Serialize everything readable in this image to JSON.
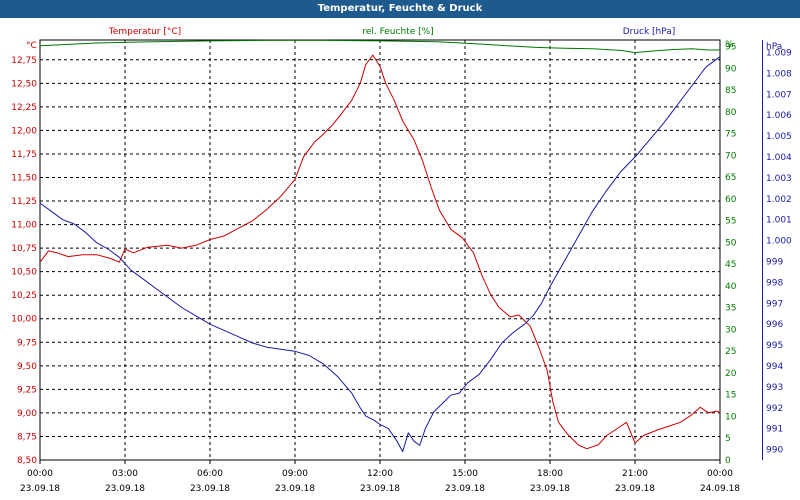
{
  "window": {
    "title": "Temperatur, Feuchte & Druck"
  },
  "colors": {
    "temperature": "#cc0000",
    "humidity": "#007a00",
    "pressure": "#1a1aa6",
    "title_bar": "#1e5a8e"
  },
  "chart_data": {
    "type": "line",
    "title": "Temperatur, Feuchte & Druck",
    "grid": true,
    "x_labels": [
      {
        "time": "00:00",
        "date": "23.09.18"
      },
      {
        "time": "03:00",
        "date": "23.09.18"
      },
      {
        "time": "06:00",
        "date": "23.09.18"
      },
      {
        "time": "09:00",
        "date": "23.09.18"
      },
      {
        "time": "12:00",
        "date": "23.09.18"
      },
      {
        "time": "15:00",
        "date": "23.09.18"
      },
      {
        "time": "18:00",
        "date": "23.09.18"
      },
      {
        "time": "21:00",
        "date": "23.09.18"
      },
      {
        "time": "00:00",
        "date": "24.09.18"
      }
    ],
    "xlim": [
      0,
      24
    ],
    "axes": {
      "temperature": {
        "label": "Temperatur [°C]",
        "unit": "°C",
        "range": [
          8.5,
          12.96
        ],
        "ticks": [
          "8,50",
          "8,75",
          "9,00",
          "9,25",
          "9,50",
          "9,75",
          "10,00",
          "10,25",
          "10,50",
          "10,75",
          "11,00",
          "11,25",
          "11,50",
          "11,75",
          "12,00",
          "12,25",
          "12,50",
          "12,75"
        ]
      },
      "humidity": {
        "label": "rel. Feuchte [%]",
        "unit": "%",
        "range": [
          0,
          96.5
        ],
        "ticks": [
          "0",
          "5",
          "10",
          "15",
          "20",
          "25",
          "30",
          "35",
          "40",
          "45",
          "50",
          "55",
          "60",
          "65",
          "70",
          "75",
          "80",
          "85",
          "90",
          "95",
          "%"
        ]
      },
      "pressure": {
        "label": "Druck [hPa]",
        "unit": "hPa",
        "range": [
          989.5,
          1009.6
        ],
        "ticks": [
          "990",
          "991",
          "992",
          "993",
          "994",
          "995",
          "996",
          "997",
          "998",
          "999",
          "1.000",
          "1.001",
          "1.002",
          "1.003",
          "1.004",
          "1.005",
          "1.006",
          "1.007",
          "1.008",
          "1.009",
          "hPa"
        ]
      }
    },
    "series": [
      {
        "name": "Temperatur [°C]",
        "axis": "temperature",
        "points": [
          [
            0,
            10.6
          ],
          [
            0.3,
            10.72
          ],
          [
            0.6,
            10.7
          ],
          [
            1,
            10.66
          ],
          [
            1.5,
            10.68
          ],
          [
            2,
            10.68
          ],
          [
            2.5,
            10.64
          ],
          [
            2.8,
            10.6
          ],
          [
            3,
            10.74
          ],
          [
            3.3,
            10.7
          ],
          [
            3.8,
            10.76
          ],
          [
            4.5,
            10.78
          ],
          [
            5,
            10.75
          ],
          [
            5.5,
            10.78
          ],
          [
            6,
            10.84
          ],
          [
            6.5,
            10.88
          ],
          [
            7,
            10.96
          ],
          [
            7.5,
            11.04
          ],
          [
            8,
            11.16
          ],
          [
            8.5,
            11.3
          ],
          [
            9,
            11.48
          ],
          [
            9.3,
            11.72
          ],
          [
            9.7,
            11.88
          ],
          [
            10,
            11.96
          ],
          [
            10.3,
            12.05
          ],
          [
            10.6,
            12.16
          ],
          [
            11,
            12.32
          ],
          [
            11.3,
            12.5
          ],
          [
            11.5,
            12.7
          ],
          [
            11.75,
            12.8
          ],
          [
            12,
            12.68
          ],
          [
            12.2,
            12.5
          ],
          [
            12.5,
            12.32
          ],
          [
            12.8,
            12.1
          ],
          [
            13.2,
            11.9
          ],
          [
            13.5,
            11.68
          ],
          [
            13.8,
            11.4
          ],
          [
            14.1,
            11.15
          ],
          [
            14.5,
            10.95
          ],
          [
            14.9,
            10.86
          ],
          [
            15.3,
            10.7
          ],
          [
            15.6,
            10.46
          ],
          [
            15.9,
            10.26
          ],
          [
            16.2,
            10.12
          ],
          [
            16.6,
            10.02
          ],
          [
            16.9,
            10.04
          ],
          [
            17.3,
            9.92
          ],
          [
            17.6,
            9.7
          ],
          [
            17.9,
            9.45
          ],
          [
            18.1,
            9.12
          ],
          [
            18.3,
            8.9
          ],
          [
            18.6,
            8.78
          ],
          [
            19,
            8.66
          ],
          [
            19.3,
            8.62
          ],
          [
            19.7,
            8.66
          ],
          [
            20,
            8.76
          ],
          [
            20.4,
            8.84
          ],
          [
            20.7,
            8.9
          ],
          [
            21,
            8.68
          ],
          [
            21.3,
            8.76
          ],
          [
            21.8,
            8.82
          ],
          [
            22.2,
            8.86
          ],
          [
            22.6,
            8.9
          ],
          [
            23,
            8.98
          ],
          [
            23.3,
            9.06
          ],
          [
            23.6,
            9.0
          ],
          [
            23.9,
            9.02
          ],
          [
            24,
            9.0
          ]
        ]
      },
      {
        "name": "rel. Feuchte [%]",
        "axis": "humidity",
        "points": [
          [
            0,
            95.2
          ],
          [
            2,
            95.8
          ],
          [
            4,
            96.1
          ],
          [
            6,
            96.3
          ],
          [
            8,
            96.4
          ],
          [
            10,
            96.4
          ],
          [
            12,
            96.3
          ],
          [
            14,
            96.1
          ],
          [
            15.2,
            95.7
          ],
          [
            16.5,
            95.2
          ],
          [
            17.5,
            94.8
          ],
          [
            18.5,
            94.6
          ],
          [
            19.5,
            94.5
          ],
          [
            20.5,
            94.1
          ],
          [
            21,
            93.6
          ],
          [
            21.5,
            93.9
          ],
          [
            22.3,
            94.3
          ],
          [
            23,
            94.5
          ],
          [
            23.6,
            94.2
          ],
          [
            24,
            94.2
          ]
        ]
      },
      {
        "name": "Druck [hPa]",
        "axis": "pressure",
        "points": [
          [
            0,
            1001.8
          ],
          [
            0.4,
            1001.4
          ],
          [
            0.8,
            1001.0
          ],
          [
            1.2,
            1000.8
          ],
          [
            1.6,
            1000.4
          ],
          [
            2,
            999.9
          ],
          [
            2.4,
            999.6
          ],
          [
            2.8,
            999.2
          ],
          [
            3.2,
            998.6
          ],
          [
            3.6,
            998.2
          ],
          [
            4,
            997.8
          ],
          [
            4.5,
            997.3
          ],
          [
            5,
            996.8
          ],
          [
            5.5,
            996.4
          ],
          [
            6,
            996.0
          ],
          [
            6.5,
            995.7
          ],
          [
            7,
            995.4
          ],
          [
            7.5,
            995.1
          ],
          [
            8,
            994.9
          ],
          [
            8.5,
            994.8
          ],
          [
            9,
            994.7
          ],
          [
            9.5,
            994.5
          ],
          [
            10,
            994.1
          ],
          [
            10.5,
            993.5
          ],
          [
            11,
            992.7
          ],
          [
            11.3,
            992.0
          ],
          [
            11.5,
            991.6
          ],
          [
            11.8,
            991.4
          ],
          [
            12,
            991.2
          ],
          [
            12.3,
            991.0
          ],
          [
            12.6,
            990.4
          ],
          [
            12.8,
            989.9
          ],
          [
            13.0,
            990.8
          ],
          [
            13.2,
            990.4
          ],
          [
            13.4,
            990.2
          ],
          [
            13.6,
            991.0
          ],
          [
            13.9,
            991.8
          ],
          [
            14.2,
            992.2
          ],
          [
            14.5,
            992.6
          ],
          [
            14.8,
            992.7
          ],
          [
            15.1,
            993.2
          ],
          [
            15.5,
            993.6
          ],
          [
            15.9,
            994.3
          ],
          [
            16.3,
            995.1
          ],
          [
            16.7,
            995.6
          ],
          [
            17.1,
            996.0
          ],
          [
            17.4,
            996.4
          ],
          [
            17.7,
            997.0
          ],
          [
            18,
            997.8
          ],
          [
            18.5,
            999.0
          ],
          [
            19,
            1000.2
          ],
          [
            19.5,
            1001.4
          ],
          [
            20,
            1002.4
          ],
          [
            20.5,
            1003.3
          ],
          [
            21,
            1004.0
          ],
          [
            21.5,
            1004.8
          ],
          [
            22,
            1005.6
          ],
          [
            22.5,
            1006.5
          ],
          [
            23,
            1007.4
          ],
          [
            23.5,
            1008.3
          ],
          [
            24,
            1008.8
          ]
        ]
      }
    ]
  }
}
